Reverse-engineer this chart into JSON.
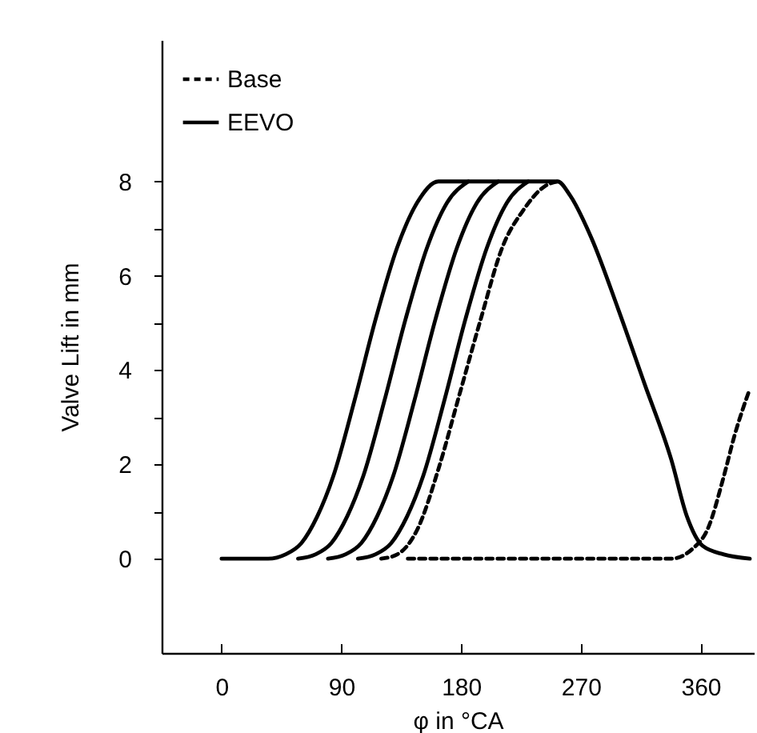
{
  "chart_data": {
    "type": "line",
    "xlabel": "φ in °CA",
    "ylabel": "Valve Lift in mm",
    "xlim": [
      -45,
      400
    ],
    "ylim": [
      -2,
      11
    ],
    "xticks": [
      0,
      90,
      180,
      270,
      360
    ],
    "yticks": [
      0,
      {
        "value": 1,
        "label": null
      },
      2,
      {
        "value": 3,
        "label": null
      },
      4,
      {
        "value": 5,
        "label": null
      },
      6,
      {
        "value": 7,
        "label": null
      },
      8
    ],
    "grid": false,
    "legend": "top left",
    "marker": "none",
    "series": [
      {
        "name": "Base",
        "color": "#000000",
        "line_style": "dashed",
        "x": [
          120,
          132,
          147.5,
          163,
          179,
          195,
          211,
          227,
          243,
          252.6
        ],
        "values": [
          0,
          0.09,
          0.64,
          1.9,
          3.5,
          5.1,
          6.6,
          7.4,
          7.9,
          8
        ]
      },
      {
        "name": "EEVO",
        "color": "#000000",
        "line_style": "solid",
        "x": [
          0,
          35,
          48,
          60,
          72,
          84,
          100,
          116,
          132,
          147,
          163,
          252.6,
          262,
          278,
          298,
          318,
          338,
          349.7,
          361.6,
          377.5,
          397
        ],
        "values": [
          0,
          0,
          0.09,
          0.33,
          0.9,
          1.75,
          3.36,
          5.1,
          6.6,
          7.55,
          8,
          8,
          7.7,
          6.8,
          5.3,
          3.7,
          2.1,
          0.9,
          0.27,
          0.09,
          0
        ]
      },
      {
        "color": "#000000",
        "line_style": "solid",
        "x": [
          57.5,
          70.5,
          82.5,
          94.5,
          106.5,
          122.5,
          138.5,
          154.5,
          169.5,
          185.5
        ],
        "values": [
          0,
          0.09,
          0.33,
          0.9,
          1.75,
          3.36,
          5.1,
          6.6,
          7.55,
          8
        ]
      },
      {
        "color": "#000000",
        "line_style": "solid",
        "x": [
          80,
          93,
          105,
          117,
          129,
          145,
          161,
          177,
          192,
          208
        ],
        "values": [
          0,
          0.09,
          0.33,
          0.9,
          1.75,
          3.36,
          5.1,
          6.6,
          7.55,
          8
        ]
      },
      {
        "color": "#000000",
        "line_style": "solid",
        "x": [
          102.5,
          115.5,
          127.5,
          139.5,
          151.5,
          167.5,
          183.5,
          199.5,
          214.5,
          230.5
        ],
        "values": [
          0,
          0.09,
          0.33,
          0.9,
          1.75,
          3.36,
          5.1,
          6.6,
          7.55,
          8
        ]
      },
      {
        "color": "#000000",
        "line_style": "dashed",
        "x": [
          140,
          338,
          353.6,
          365.5,
          377.5,
          385.4,
          397
        ],
        "values": [
          0,
          0,
          0.2,
          0.64,
          1.75,
          2.6,
          3.6
        ]
      }
    ]
  }
}
